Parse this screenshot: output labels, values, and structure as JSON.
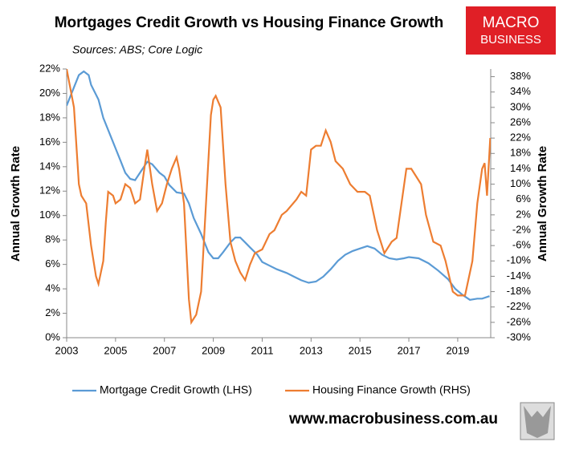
{
  "chart_data": {
    "type": "line",
    "title": "Mortgages Credit Growth vs Housing Finance Growth",
    "subtitle": "Sources: ABS; Core Logic",
    "ylabel": "Annual Growth Rate",
    "y2label": "Annual Growth Rate",
    "logo": [
      "MACRO",
      "BUSINESS"
    ],
    "footer": "www.macrobusiness.com.au",
    "xlim": [
      2003,
      2020.35
    ],
    "xticks": [
      2003,
      2005,
      2007,
      2009,
      2011,
      2013,
      2015,
      2017,
      2019
    ],
    "ylim": [
      0,
      22
    ],
    "yticks": [
      {
        "value": 0,
        "label": "0%"
      },
      {
        "value": 2,
        "label": "2%"
      },
      {
        "value": 4,
        "label": "4%"
      },
      {
        "value": 6,
        "label": "6%"
      },
      {
        "value": 8,
        "label": "8%"
      },
      {
        "value": 10,
        "label": "10%"
      },
      {
        "value": 12,
        "label": "12%"
      },
      {
        "value": 14,
        "label": "14%"
      },
      {
        "value": 16,
        "label": "16%"
      },
      {
        "value": 18,
        "label": "18%"
      },
      {
        "value": 20,
        "label": "20%"
      },
      {
        "value": 22,
        "label": "22%"
      }
    ],
    "y2lim": [
      -30,
      40
    ],
    "y2ticks": [
      {
        "value": -30,
        "label": "-30%"
      },
      {
        "value": -26,
        "label": "-26%"
      },
      {
        "value": -22,
        "label": "-22%"
      },
      {
        "value": -18,
        "label": "-18%"
      },
      {
        "value": -14,
        "label": "-14%"
      },
      {
        "value": -10,
        "label": "-10%"
      },
      {
        "value": -6,
        "label": "-6%"
      },
      {
        "value": -2,
        "label": "-2%"
      },
      {
        "value": 2,
        "label": "2%"
      },
      {
        "value": 6,
        "label": "6%"
      },
      {
        "value": 10,
        "label": "10%"
      },
      {
        "value": 14,
        "label": "14%"
      },
      {
        "value": 18,
        "label": "18%"
      },
      {
        "value": 22,
        "label": "22%"
      },
      {
        "value": 26,
        "label": "26%"
      },
      {
        "value": 30,
        "label": "30%"
      },
      {
        "value": 34,
        "label": "34%"
      },
      {
        "value": 38,
        "label": "38%"
      }
    ],
    "series": [
      {
        "name": "Mortgage Credit Growth (LHS)",
        "color": "#5b9bd5",
        "x": [
          2003.0,
          2003.3,
          2003.5,
          2003.7,
          2003.9,
          2004.0,
          2004.3,
          2004.5,
          2004.8,
          2005.0,
          2005.2,
          2005.4,
          2005.6,
          2005.8,
          2006.0,
          2006.3,
          2006.5,
          2006.8,
          2007.0,
          2007.2,
          2007.5,
          2007.8,
          2008.0,
          2008.2,
          2008.5,
          2008.8,
          2009.0,
          2009.2,
          2009.4,
          2009.7,
          2009.9,
          2010.1,
          2010.3,
          2010.5,
          2010.8,
          2011.0,
          2011.3,
          2011.6,
          2012.0,
          2012.3,
          2012.6,
          2012.9,
          2013.2,
          2013.5,
          2013.8,
          2014.1,
          2014.4,
          2014.7,
          2015.0,
          2015.3,
          2015.6,
          2015.9,
          2016.2,
          2016.5,
          2016.8,
          2017.0,
          2017.4,
          2017.8,
          2018.2,
          2018.6,
          2018.9,
          2019.2,
          2019.5,
          2019.8,
          2020.0,
          2020.3
        ],
        "values": [
          19,
          20.5,
          21.5,
          21.8,
          21.5,
          20.7,
          19.5,
          18.0,
          16.5,
          15.5,
          14.5,
          13.5,
          13.0,
          12.9,
          13.5,
          14.4,
          14.2,
          13.5,
          13.2,
          12.5,
          11.9,
          11.8,
          11.0,
          9.8,
          8.5,
          7.0,
          6.5,
          6.5,
          7.0,
          7.8,
          8.2,
          8.2,
          7.8,
          7.4,
          6.8,
          6.2,
          5.9,
          5.6,
          5.3,
          5.0,
          4.7,
          4.5,
          4.6,
          5.0,
          5.6,
          6.3,
          6.8,
          7.1,
          7.3,
          7.5,
          7.3,
          6.8,
          6.5,
          6.4,
          6.5,
          6.6,
          6.5,
          6.1,
          5.5,
          4.8,
          4.0,
          3.5,
          3.1,
          3.2,
          3.2,
          3.4
        ]
      },
      {
        "name": "Housing Finance Growth (RHS)",
        "color": "#ed7d31",
        "axis": "y2",
        "x": [
          2003.0,
          2003.3,
          2003.5,
          2003.6,
          2003.8,
          2004.0,
          2004.2,
          2004.3,
          2004.5,
          2004.6,
          2004.7,
          2004.9,
          2005.0,
          2005.2,
          2005.4,
          2005.6,
          2005.8,
          2006.0,
          2006.2,
          2006.3,
          2006.5,
          2006.7,
          2006.9,
          2007.1,
          2007.3,
          2007.5,
          2007.6,
          2007.8,
          2008.0,
          2008.1,
          2008.3,
          2008.5,
          2008.7,
          2008.9,
          2009.0,
          2009.1,
          2009.3,
          2009.5,
          2009.7,
          2009.9,
          2010.1,
          2010.3,
          2010.5,
          2010.7,
          2011.0,
          2011.3,
          2011.5,
          2011.8,
          2012.0,
          2012.4,
          2012.6,
          2012.8,
          2013.0,
          2013.2,
          2013.4,
          2013.6,
          2013.8,
          2014.0,
          2014.3,
          2014.6,
          2014.9,
          2015.2,
          2015.4,
          2015.7,
          2016.0,
          2016.3,
          2016.5,
          2016.7,
          2016.9,
          2017.1,
          2017.3,
          2017.5,
          2017.7,
          2018.0,
          2018.3,
          2018.5,
          2018.8,
          2019.0,
          2019.3,
          2019.6,
          2019.8,
          2020.0,
          2020.1,
          2020.2,
          2020.33
        ],
        "values": [
          40,
          30,
          10,
          7,
          5,
          -6,
          -14,
          -16,
          -10,
          0,
          8,
          7,
          5,
          6,
          10,
          9,
          5,
          6,
          15,
          19,
          10,
          3,
          5,
          10,
          14,
          17,
          14,
          5,
          -20,
          -26,
          -24,
          -18,
          5,
          28,
          32,
          33,
          30,
          10,
          -5,
          -10,
          -13,
          -15,
          -11,
          -8,
          -7,
          -3,
          -2,
          2,
          3,
          6,
          8,
          7,
          19,
          20,
          20,
          24,
          21,
          16,
          14,
          10,
          8,
          8,
          7,
          -2,
          -8,
          -5,
          -4,
          5,
          14,
          14,
          12,
          10,
          2,
          -5,
          -6,
          -10,
          -18,
          -19,
          -19,
          -10,
          5,
          14,
          15.5,
          7,
          22
        ]
      }
    ]
  }
}
